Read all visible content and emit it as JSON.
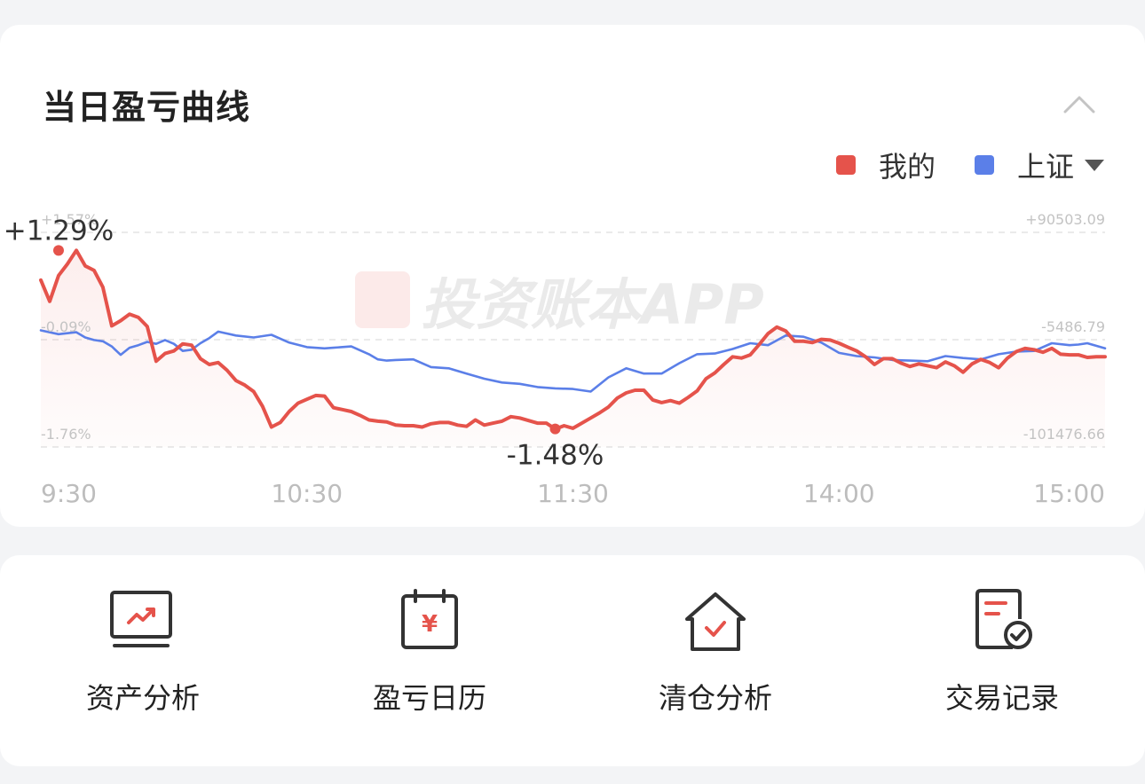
{
  "title": "当日盈亏曲线",
  "legend": {
    "mine": {
      "label": "我的",
      "color": "#e5534b"
    },
    "index": {
      "label": "上证",
      "color": "#5b7fe8",
      "icon": "dropdown-triangle-icon"
    }
  },
  "collapse_icon": "chevron-up-icon",
  "watermark": "投资账本APP",
  "chart_data": {
    "type": "line",
    "x_ticks": [
      "9:30",
      "10:30",
      "11:30",
      "14:00",
      "15:00"
    ],
    "y_left_ticks": [
      "+1.57%",
      "-0.09%",
      "-1.76%"
    ],
    "y_right_ticks": [
      "+90503.09",
      "-5486.79",
      "-101476.66"
    ],
    "ylim": [
      -1.76,
      1.57
    ],
    "annotations": {
      "max": {
        "label": "+1.29%",
        "x": 4,
        "value": 1.29
      },
      "min": {
        "label": "-1.48%",
        "x": 116,
        "value": -1.48
      }
    },
    "series": [
      {
        "name": "我的",
        "color": "#e5534b",
        "x": [
          0,
          2,
          4,
          6,
          8,
          10,
          12,
          14,
          16,
          18,
          20,
          22,
          24,
          26,
          28,
          30,
          32,
          34,
          36,
          38,
          40,
          42,
          44,
          46,
          48,
          50,
          52,
          54,
          56,
          58,
          60,
          62,
          64,
          66,
          68,
          70,
          72,
          74,
          76,
          78,
          80,
          82,
          84,
          86,
          88,
          90,
          92,
          94,
          96,
          98,
          100,
          102,
          104,
          106,
          108,
          110,
          112,
          114,
          116,
          118,
          120,
          121,
          124,
          126,
          128,
          130,
          132,
          134,
          136,
          138,
          140,
          142,
          144,
          146,
          148,
          150,
          152,
          154,
          156,
          158,
          160,
          162,
          164,
          166,
          168,
          170,
          172,
          174,
          176,
          178,
          180,
          182,
          184,
          186,
          188,
          190,
          192,
          194,
          196,
          198,
          200,
          202,
          204,
          206,
          208,
          210,
          212,
          214,
          216,
          218,
          220,
          222,
          224,
          226,
          228,
          230,
          232,
          234,
          236,
          238,
          240
        ],
        "values": [
          0.83,
          0.5,
          0.9,
          1.08,
          1.29,
          1.05,
          0.98,
          0.72,
          0.12,
          0.2,
          0.3,
          0.25,
          0.11,
          -0.43,
          -0.31,
          -0.27,
          -0.16,
          -0.18,
          -0.39,
          -0.48,
          -0.45,
          -0.57,
          -0.73,
          -0.8,
          -0.9,
          -1.13,
          -1.45,
          -1.38,
          -1.21,
          -1.08,
          -1.02,
          -0.96,
          -0.97,
          -1.15,
          -1.18,
          -1.21,
          -1.27,
          -1.34,
          -1.36,
          -1.37,
          -1.42,
          -1.43,
          -1.43,
          -1.45,
          -1.4,
          -1.38,
          -1.38,
          -1.42,
          -1.44,
          -1.34,
          -1.42,
          -1.39,
          -1.36,
          -1.29,
          -1.31,
          -1.35,
          -1.39,
          -1.39,
          -1.48,
          -1.43,
          -1.47,
          -1.43,
          -1.31,
          -1.23,
          -1.14,
          -1.0,
          -0.92,
          -0.88,
          -0.88,
          -1.03,
          -1.07,
          -1.04,
          -1.08,
          -0.99,
          -0.89,
          -0.7,
          -0.61,
          -0.48,
          -0.36,
          -0.38,
          -0.33,
          -0.17,
          0.0,
          0.1,
          0.04,
          -0.12,
          -0.12,
          -0.14,
          -0.09,
          -0.1,
          -0.15,
          -0.21,
          -0.27,
          -0.36,
          -0.48,
          -0.39,
          -0.39,
          -0.46,
          -0.51,
          -0.47,
          -0.5,
          -0.53,
          -0.44,
          -0.5,
          -0.6,
          -0.47,
          -0.4,
          -0.45,
          -0.53,
          -0.38,
          -0.28,
          -0.23,
          -0.25,
          -0.29,
          -0.23,
          -0.32,
          -0.33,
          -0.33,
          -0.37,
          -0.36,
          -0.36
        ]
      },
      {
        "name": "上证",
        "color": "#5b7fe8",
        "x": [
          0,
          4,
          8,
          10,
          12,
          14,
          16,
          18,
          20,
          22,
          24,
          26,
          28,
          30,
          32,
          34,
          36,
          38,
          40,
          44,
          48,
          52,
          56,
          60,
          64,
          66,
          70,
          74,
          76,
          78,
          80,
          84,
          88,
          92,
          96,
          100,
          104,
          108,
          112,
          116,
          120,
          124,
          128,
          132,
          136,
          140,
          144,
          148,
          152,
          156,
          160,
          164,
          168,
          172,
          176,
          180,
          184,
          188,
          192,
          196,
          200,
          204,
          208,
          212,
          216,
          220,
          224,
          228,
          232,
          234,
          236,
          240
        ],
        "values": [
          0.05,
          -0.01,
          0.02,
          -0.06,
          -0.1,
          -0.12,
          -0.2,
          -0.33,
          -0.22,
          -0.18,
          -0.13,
          -0.16,
          -0.1,
          -0.16,
          -0.27,
          -0.25,
          -0.15,
          -0.07,
          0.03,
          -0.03,
          -0.06,
          -0.02,
          -0.14,
          -0.21,
          -0.23,
          -0.22,
          -0.2,
          -0.32,
          -0.4,
          -0.42,
          -0.41,
          -0.4,
          -0.52,
          -0.54,
          -0.62,
          -0.7,
          -0.76,
          -0.78,
          -0.83,
          -0.85,
          -0.86,
          -0.9,
          -0.68,
          -0.54,
          -0.62,
          -0.62,
          -0.46,
          -0.32,
          -0.31,
          -0.24,
          -0.15,
          -0.18,
          -0.03,
          -0.05,
          -0.14,
          -0.3,
          -0.35,
          -0.37,
          -0.41,
          -0.42,
          -0.43,
          -0.35,
          -0.38,
          -0.4,
          -0.32,
          -0.28,
          -0.27,
          -0.15,
          -0.18,
          -0.17,
          -0.15,
          -0.23
        ]
      }
    ]
  },
  "tools": [
    {
      "label": "资产分析",
      "icon": "asset-analysis-monitor-icon"
    },
    {
      "label": "盈亏日历",
      "icon": "pnl-calendar-icon"
    },
    {
      "label": "清仓分析",
      "icon": "clearance-house-icon"
    },
    {
      "label": "交易记录",
      "icon": "trade-record-icon"
    }
  ]
}
